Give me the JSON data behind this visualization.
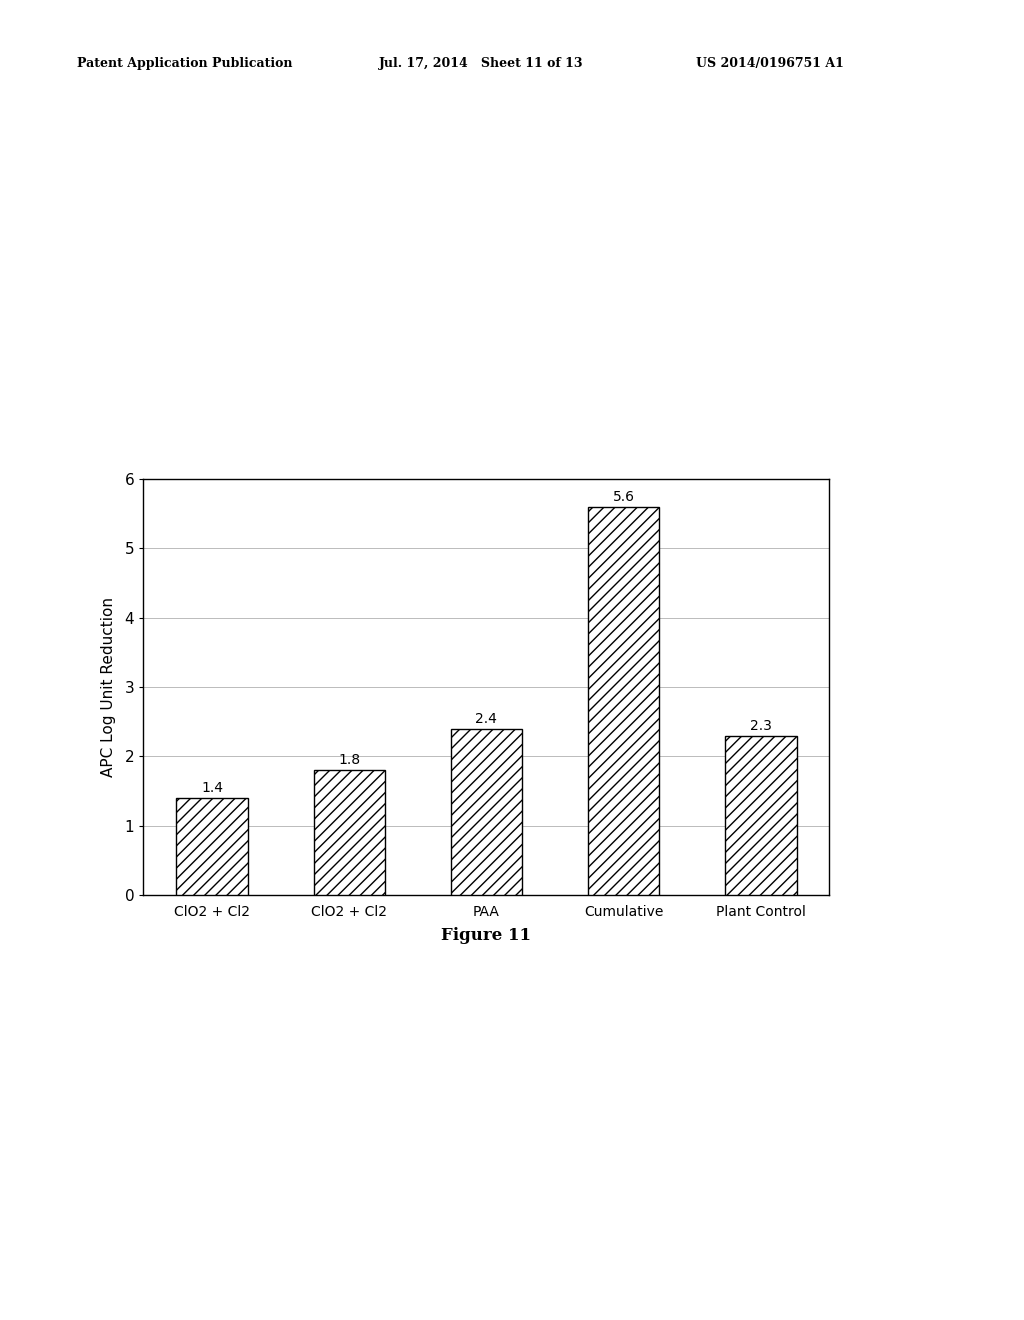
{
  "categories": [
    "ClO2 + Cl2",
    "ClO2 + Cl2",
    "PAA",
    "Cumulative",
    "Plant Control"
  ],
  "values": [
    1.4,
    1.8,
    2.4,
    5.6,
    2.3
  ],
  "ylabel": "APC Log Unit Reduction",
  "ylim": [
    0,
    6
  ],
  "yticks": [
    0,
    1,
    2,
    3,
    4,
    5,
    6
  ],
  "figure_caption": "Figure 11",
  "bar_color": "#ffffff",
  "bar_edgecolor": "#000000",
  "hatch": "///",
  "header_left": "Patent Application Publication",
  "header_mid": "Jul. 17, 2014   Sheet 11 of 13",
  "header_right": "US 2014/0196751 A1",
  "bg_color": "#ffffff",
  "value_fontsize": 10,
  "axis_fontsize": 11,
  "label_fontsize": 10,
  "caption_fontsize": 12,
  "header_fontsize": 9
}
